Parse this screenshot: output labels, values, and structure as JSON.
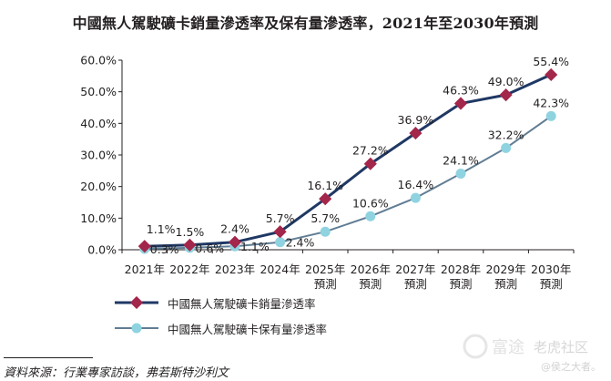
{
  "chart_data": {
    "type": "line",
    "title": "中國無人駕駛礦卡銷量滲透率及保有量滲透率，2021年至2030年預測",
    "categories": [
      [
        "2021年",
        ""
      ],
      [
        "2022年",
        ""
      ],
      [
        "2023年",
        ""
      ],
      [
        "2024年",
        ""
      ],
      [
        "2025年",
        "預測"
      ],
      [
        "2026年",
        "預測"
      ],
      [
        "2027年",
        "預測"
      ],
      [
        "2028年",
        "預測"
      ],
      [
        "2029年",
        "預測"
      ],
      [
        "2030年",
        "預測"
      ]
    ],
    "ylim": [
      0,
      60
    ],
    "yticks": [
      0,
      10,
      20,
      30,
      40,
      50,
      60
    ],
    "ytick_labels": [
      "0.0%",
      "10.0%",
      "20.0%",
      "30.0%",
      "40.0%",
      "50.0%",
      "60.0%"
    ],
    "series": [
      {
        "name": "中國無人駕駛礦卡銷量滲透率",
        "values": [
          1.1,
          1.5,
          2.4,
          5.7,
          16.1,
          27.2,
          36.9,
          46.3,
          49.0,
          55.4
        ],
        "labels": [
          "1.1%",
          "1.5%",
          "2.4%",
          "5.7%",
          "16.1%",
          "27.2%",
          "36.9%",
          "46.3%",
          "49.0%",
          "55.4%"
        ],
        "color": "#1f3864",
        "marker_color": "#a3264b",
        "marker": "diamond"
      },
      {
        "name": "中國無人駕駛礦卡保有量滲透率",
        "values": [
          0.3,
          0.6,
          1.1,
          2.4,
          5.7,
          10.6,
          16.4,
          24.1,
          32.2,
          42.3
        ],
        "labels": [
          "0.3%",
          "0.6%",
          "1.1%",
          "2.4%",
          "5.7%",
          "10.6%",
          "16.4%",
          "24.1%",
          "32.2%",
          "42.3%"
        ],
        "color": "#607d94",
        "marker_color": "#8fd3e0",
        "marker": "circle"
      }
    ],
    "legend_position": "bottom-left",
    "grid": false
  },
  "source_text": "資料來源：行業專家訪談，弗若斯特沙利文",
  "watermark": {
    "brand": "富途",
    "tag": "老虎社区",
    "handle": "@侯之大者。"
  }
}
